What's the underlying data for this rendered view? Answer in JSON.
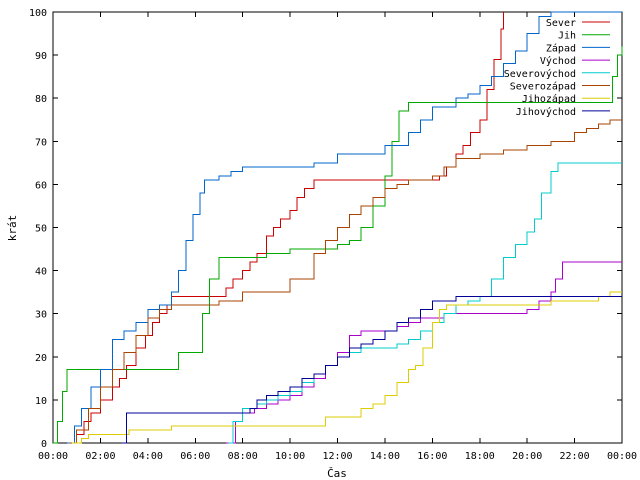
{
  "chart_data": {
    "type": "line",
    "title": "",
    "xlabel": "Čas",
    "ylabel": "krát",
    "xlim": [
      0,
      24
    ],
    "ylim": [
      0,
      100
    ],
    "x_ticks": [
      "00:00",
      "02:00",
      "04:00",
      "06:00",
      "08:00",
      "10:00",
      "12:00",
      "14:00",
      "16:00",
      "18:00",
      "20:00",
      "22:00",
      "00:00"
    ],
    "y_ticks": [
      0,
      10,
      20,
      30,
      40,
      50,
      60,
      70,
      80,
      90,
      100
    ],
    "grid": false,
    "legend_position": "top-right",
    "series": [
      {
        "name": "Sever",
        "color": "#cc0000",
        "x": [
          0.8,
          1.0,
          1.3,
          1.6,
          2.0,
          2.5,
          2.8,
          3.1,
          3.5,
          3.9,
          4.2,
          4.5,
          4.8,
          5.0,
          6.0,
          7.0,
          7.3,
          7.6,
          8.0,
          8.3,
          8.6,
          9.0,
          9.3,
          9.6,
          10.0,
          10.3,
          10.6,
          11.0,
          12.0,
          12.5,
          13.0,
          13.5,
          14.0,
          14.5,
          15.0,
          15.5,
          16.0,
          16.3,
          16.6,
          17.0,
          17.3,
          17.6,
          18.0,
          18.3,
          18.6,
          18.9,
          19.0
        ],
        "y": [
          0,
          2,
          5,
          7,
          10,
          13,
          15,
          18,
          22,
          25,
          28,
          30,
          32,
          34,
          34,
          34,
          36,
          38,
          40,
          42,
          44,
          48,
          50,
          52,
          54,
          57,
          59,
          61,
          61,
          61,
          61,
          61,
          61,
          61,
          61,
          61,
          61,
          62,
          64,
          67,
          69,
          72,
          75,
          82,
          89,
          96,
          100
        ]
      },
      {
        "name": "Jih",
        "color": "#00aa00",
        "x": [
          0,
          0.2,
          0.4,
          0.6,
          5.0,
          5.3,
          6.0,
          6.3,
          6.6,
          7.0,
          7.3,
          8.0,
          9.0,
          10.0,
          11.0,
          12.0,
          12.5,
          13.0,
          13.5,
          14.0,
          14.3,
          14.6,
          15.0,
          15.5,
          16.0,
          17.0,
          18.0,
          19.0,
          20.0,
          21.0,
          22.0,
          23.0,
          23.6,
          23.8,
          24.0
        ],
        "y": [
          0,
          5,
          12,
          17,
          17,
          21,
          21,
          30,
          38,
          43,
          43,
          43,
          44,
          45,
          45,
          46,
          47,
          50,
          55,
          62,
          70,
          77,
          79,
          79,
          79,
          79,
          79,
          79,
          79,
          79,
          79,
          79,
          85,
          90,
          92
        ]
      },
      {
        "name": "Západ",
        "color": "#0066cc",
        "x": [
          0.6,
          0.9,
          1.2,
          1.6,
          2.0,
          2.5,
          3.0,
          3.5,
          4.0,
          4.5,
          5.0,
          5.3,
          5.6,
          5.9,
          6.2,
          6.4,
          7.0,
          7.5,
          8.0,
          9.0,
          10.0,
          11.0,
          12.0,
          13.0,
          14.0,
          14.5,
          15.0,
          15.5,
          16.0,
          17.0,
          17.5,
          18.0,
          18.5,
          19.0,
          19.5,
          20.0,
          20.5,
          21.0,
          21.5,
          22.0,
          22.5,
          23.0,
          23.5,
          24.0
        ],
        "y": [
          0,
          4,
          8,
          13,
          17,
          24,
          26,
          28,
          31,
          32,
          35,
          40,
          47,
          53,
          58,
          61,
          62,
          63,
          64,
          64,
          64,
          65,
          67,
          67,
          69,
          69,
          72,
          75,
          78,
          80,
          81,
          83,
          85,
          88,
          91,
          95,
          99,
          100,
          100,
          100,
          100,
          100,
          100,
          100
        ]
      },
      {
        "name": "Východ",
        "color": "#aa00cc",
        "x": [
          7.3,
          7.7,
          8.0,
          8.5,
          9.0,
          9.5,
          10.0,
          10.5,
          11.0,
          11.5,
          12.0,
          12.5,
          13.0,
          13.5,
          14.0,
          14.5,
          15.0,
          15.5,
          16.0,
          16.5,
          17.0,
          18.0,
          19.0,
          20.0,
          20.5,
          21.0,
          21.2,
          21.5,
          24.0
        ],
        "y": [
          0,
          5,
          7,
          8,
          9,
          10,
          11,
          13,
          15,
          18,
          21,
          25,
          26,
          26,
          26,
          27,
          28,
          29,
          29,
          30,
          30,
          30,
          30,
          31,
          33,
          35,
          38,
          42,
          42
        ]
      },
      {
        "name": "Severovýchod",
        "color": "#00cccc",
        "x": [
          7.4,
          7.6,
          8.0,
          8.6,
          9.0,
          9.5,
          10.0,
          10.5,
          11.0,
          11.5,
          12.0,
          12.5,
          13.0,
          14.0,
          14.5,
          15.0,
          15.5,
          16.0,
          16.5,
          17.0,
          17.5,
          18.0,
          18.5,
          19.0,
          19.5,
          20.0,
          20.3,
          20.6,
          21.0,
          21.3,
          21.6,
          24.0
        ],
        "y": [
          0,
          5,
          8,
          9,
          10,
          11,
          12,
          14,
          16,
          18,
          20,
          21,
          22,
          22,
          23,
          24,
          26,
          28,
          30,
          32,
          33,
          34,
          38,
          43,
          46,
          49,
          52,
          58,
          63,
          65,
          65,
          65
        ]
      },
      {
        "name": "Severozápad",
        "color": "#aa4400",
        "x": [
          0.7,
          1.0,
          1.5,
          2.0,
          2.5,
          3.0,
          3.5,
          4.0,
          4.5,
          5.0,
          6.0,
          7.0,
          8.0,
          9.0,
          10.0,
          11.0,
          11.5,
          12.0,
          12.5,
          13.0,
          13.5,
          14.0,
          14.5,
          15.0,
          16.0,
          16.5,
          17.0,
          18.0,
          19.0,
          20.0,
          21.0,
          22.0,
          22.5,
          23.0,
          23.5,
          24.0
        ],
        "y": [
          0,
          3,
          8,
          13,
          17,
          21,
          25,
          29,
          31,
          32,
          32,
          33,
          35,
          35,
          38,
          44,
          47,
          50,
          53,
          55,
          57,
          59,
          60,
          61,
          62,
          64,
          66,
          67,
          68,
          69,
          70,
          72,
          73,
          74,
          75,
          75
        ]
      },
      {
        "name": "Jihozápad",
        "color": "#ddcc00",
        "x": [
          0.8,
          1.2,
          1.5,
          2.0,
          3.0,
          3.2,
          4.0,
          5.0,
          6.0,
          7.0,
          8.0,
          9.0,
          10.0,
          11.0,
          11.5,
          12.0,
          12.5,
          13.0,
          13.5,
          14.0,
          14.5,
          15.0,
          15.3,
          15.6,
          16.0,
          16.3,
          16.6,
          17.0,
          18.0,
          19.0,
          20.0,
          21.0,
          22.0,
          23.0,
          23.5,
          24.0
        ],
        "y": [
          0,
          1,
          2,
          2,
          2,
          3,
          3,
          4,
          4,
          4,
          4,
          4,
          4,
          4,
          6,
          6,
          6,
          8,
          9,
          11,
          14,
          17,
          18,
          22,
          28,
          31,
          32,
          32,
          32,
          32,
          32,
          33,
          33,
          34,
          35,
          35
        ]
      },
      {
        "name": "Jihovýchod",
        "color": "#000099",
        "x": [
          2.9,
          3.1,
          4.0,
          5.0,
          6.0,
          7.0,
          8.0,
          8.3,
          8.6,
          9.0,
          9.5,
          10.0,
          10.5,
          11.0,
          11.5,
          12.0,
          12.5,
          13.0,
          13.5,
          14.0,
          14.5,
          15.0,
          15.5,
          16.0,
          16.5,
          17.0,
          18.0,
          19.0,
          20.0,
          21.0,
          22.0,
          23.0,
          24.0
        ],
        "y": [
          0,
          7,
          7,
          7,
          7,
          7,
          7,
          8,
          10,
          11,
          12,
          13,
          15,
          16,
          18,
          20,
          22,
          23,
          24,
          26,
          28,
          29,
          31,
          33,
          33,
          34,
          34,
          34,
          34,
          34,
          34,
          34,
          34
        ]
      }
    ]
  }
}
